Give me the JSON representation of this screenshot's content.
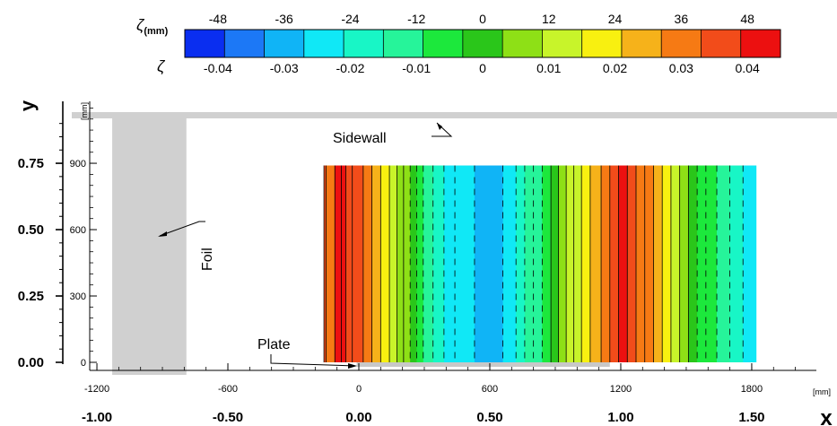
{
  "chart_data": {
    "type": "contour",
    "colorbar": {
      "label_mm": "ζ(mm)",
      "label_nd": "ζ",
      "ticks_mm": [
        "-48",
        "-36",
        "-24",
        "-12",
        "0",
        "12",
        "24",
        "36",
        "48"
      ],
      "ticks_nd": [
        "-0.04",
        "-0.03",
        "-0.02",
        "-0.01",
        "0",
        "0.01",
        "0.02",
        "0.03",
        "0.04"
      ],
      "range_mm": [
        -54,
        54
      ],
      "levels": 14,
      "colors": [
        "#0a2ef0",
        "#1c78f6",
        "#10b4f6",
        "#10e8f6",
        "#18f6c6",
        "#26f49a",
        "#1ce83c",
        "#2ac61a",
        "#8ee016",
        "#c8f42a",
        "#f8f010",
        "#f6b21a",
        "#f67a14",
        "#f24c1a",
        "#ec1010"
      ]
    },
    "x_axis_mm": {
      "ticks": [
        "-1200",
        "-600",
        "0",
        "600",
        "1200",
        "1800"
      ],
      "values": [
        -1200,
        -600,
        0,
        600,
        1200,
        1800
      ],
      "unit": "[mm]",
      "range": [
        -1200,
        2100
      ]
    },
    "x_axis_nd": {
      "ticks": [
        "-1.00",
        "-0.50",
        "0.00",
        "0.50",
        "1.00",
        "1.50"
      ],
      "values": [
        -1.0,
        -0.5,
        0.0,
        0.5,
        1.0,
        1.5
      ],
      "label": "x"
    },
    "y_axis_mm": {
      "ticks": [
        "0",
        "300",
        "600",
        "900"
      ],
      "values": [
        0,
        300,
        600,
        900
      ],
      "unit": "[mm]",
      "range": [
        0,
        1100
      ]
    },
    "y_axis_nd": {
      "ticks": [
        "0.00",
        "0.25",
        "0.50",
        "0.75"
      ],
      "values": [
        0,
        0.25,
        0.5,
        0.75
      ],
      "label": "y"
    },
    "annotations": {
      "sidewall": "Sidewall",
      "foil": "Foil",
      "plate": "Plate"
    },
    "foil_x_mm": [
      -1130,
      -790
    ],
    "sidewall_y_mm": [
      1145,
      1165
    ],
    "contour_domain": {
      "x_mm": [
        -160,
        1820
      ],
      "y_mm": [
        0,
        890
      ]
    },
    "contour_bands_mm": [
      [
        -160,
        -150,
        42
      ],
      [
        -150,
        -110,
        36
      ],
      [
        -110,
        -80,
        47
      ],
      [
        -80,
        -60,
        48
      ],
      [
        -60,
        -30,
        46
      ],
      [
        -30,
        20,
        40
      ],
      [
        20,
        60,
        34
      ],
      [
        60,
        100,
        30
      ],
      [
        100,
        140,
        22
      ],
      [
        140,
        175,
        14
      ],
      [
        175,
        205,
        8
      ],
      [
        205,
        235,
        4
      ],
      [
        235,
        265,
        -2
      ],
      [
        265,
        295,
        -6
      ],
      [
        295,
        340,
        -12
      ],
      [
        340,
        390,
        -20
      ],
      [
        390,
        440,
        -26
      ],
      [
        440,
        530,
        -32
      ],
      [
        530,
        660,
        -36
      ],
      [
        660,
        720,
        -30
      ],
      [
        720,
        760,
        -24
      ],
      [
        760,
        800,
        -18
      ],
      [
        800,
        840,
        -12
      ],
      [
        840,
        880,
        -6
      ],
      [
        880,
        915,
        0
      ],
      [
        915,
        950,
        6
      ],
      [
        950,
        985,
        12
      ],
      [
        985,
        1020,
        16
      ],
      [
        1020,
        1060,
        22
      ],
      [
        1060,
        1110,
        30
      ],
      [
        1110,
        1150,
        36
      ],
      [
        1150,
        1190,
        40
      ],
      [
        1190,
        1230,
        48
      ],
      [
        1230,
        1270,
        40
      ],
      [
        1270,
        1310,
        38
      ],
      [
        1310,
        1350,
        34
      ],
      [
        1350,
        1390,
        28
      ],
      [
        1390,
        1430,
        22
      ],
      [
        1430,
        1470,
        14
      ],
      [
        1470,
        1510,
        8
      ],
      [
        1510,
        1550,
        2
      ],
      [
        1550,
        1590,
        -4
      ],
      [
        1590,
        1640,
        -10
      ],
      [
        1640,
        1700,
        -16
      ],
      [
        1700,
        1760,
        -22
      ],
      [
        1760,
        1820,
        -30
      ]
    ]
  }
}
